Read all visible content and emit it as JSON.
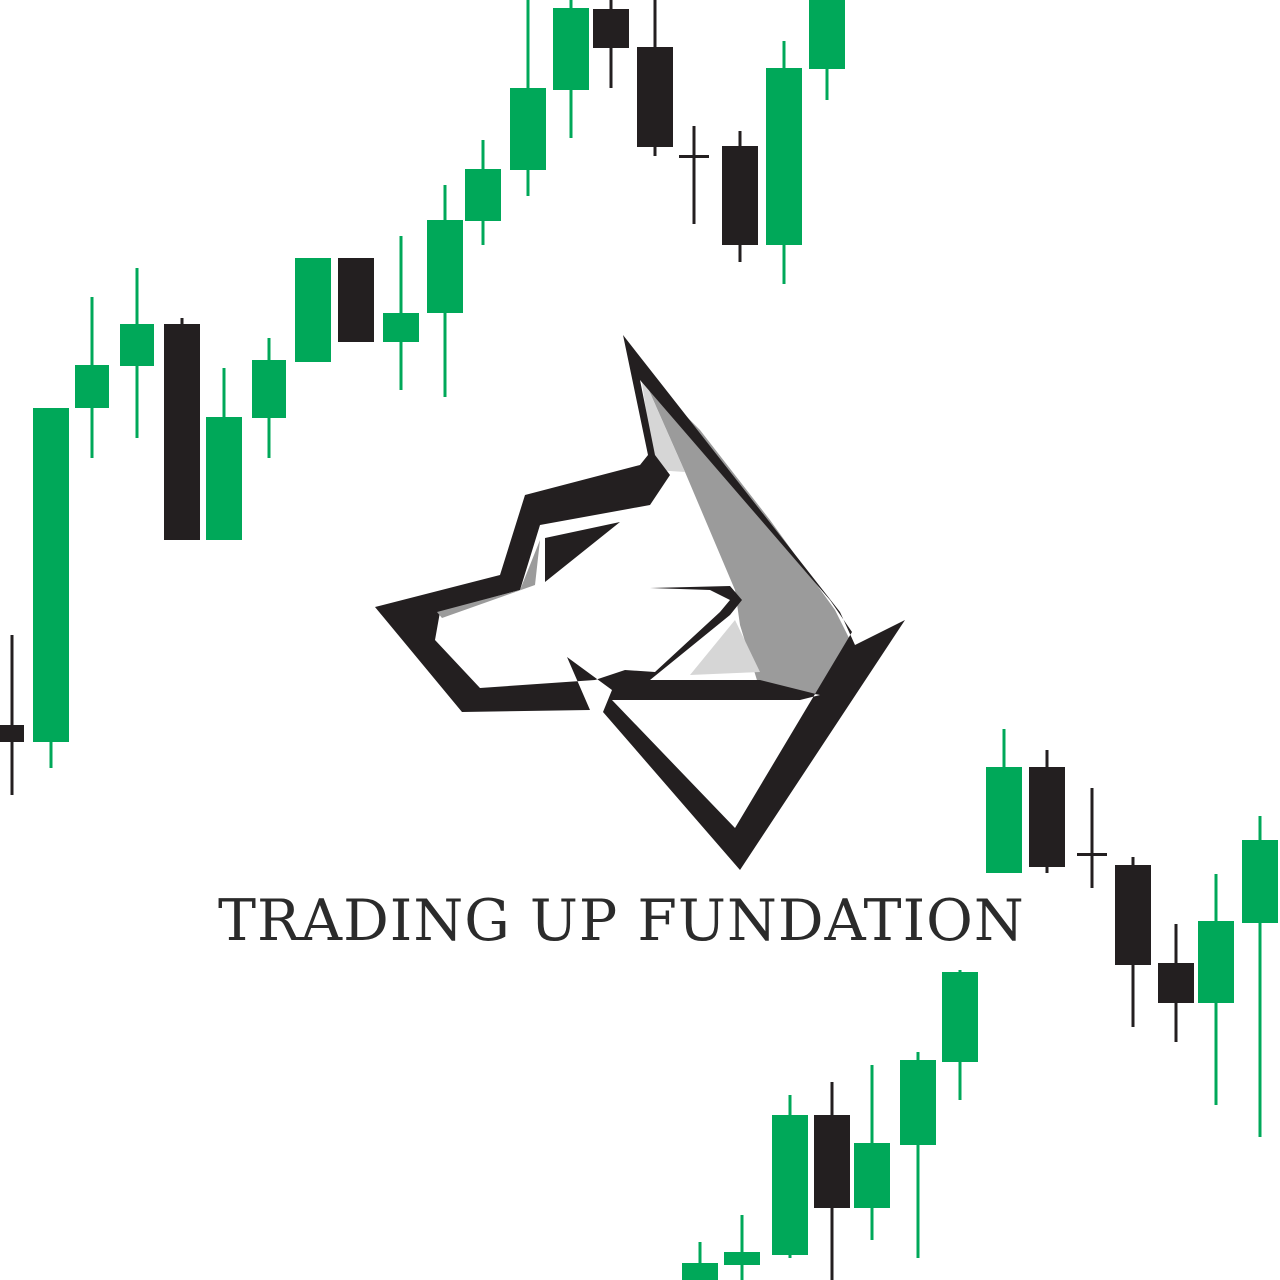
{
  "brand": {
    "name": "TRADING UP FUNDATION",
    "logo_icon": "wolf-head-icon"
  },
  "colors": {
    "bullish": "#00a859",
    "bearish": "#231f20",
    "logo_gray": "#9b9b9b",
    "logo_light": "#d6d6d6",
    "text": "#2b2b2b"
  }
}
